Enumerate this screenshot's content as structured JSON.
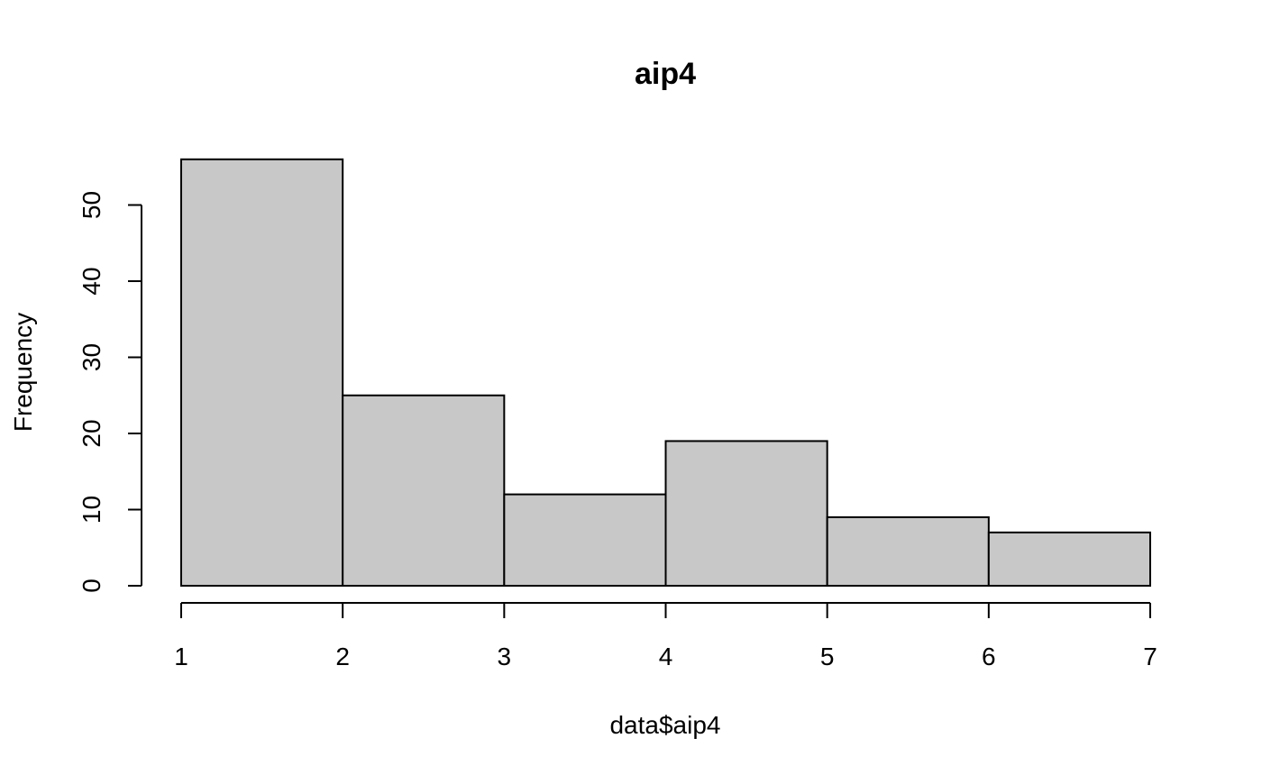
{
  "chart_data": {
    "type": "bar",
    "subtype": "histogram",
    "title": "aip4",
    "xlabel": "data$aip4",
    "ylabel": "Frequency",
    "bins": [
      {
        "from": 1,
        "to": 2,
        "count": 56
      },
      {
        "from": 2,
        "to": 3,
        "count": 25
      },
      {
        "from": 3,
        "to": 4,
        "count": 12
      },
      {
        "from": 4,
        "to": 5,
        "count": 19
      },
      {
        "from": 5,
        "to": 6,
        "count": 9
      },
      {
        "from": 6,
        "to": 7,
        "count": 7
      }
    ],
    "xlim": [
      1,
      7
    ],
    "ylim": [
      0,
      56
    ],
    "x_ticks": [
      "1",
      "2",
      "3",
      "4",
      "5",
      "6",
      "7"
    ],
    "y_ticks": [
      "0",
      "10",
      "20",
      "30",
      "40",
      "50"
    ],
    "grid": false,
    "legend": "none",
    "colors": {
      "bar_fill": "#c8c8c8",
      "bar_stroke": "#000000"
    }
  }
}
